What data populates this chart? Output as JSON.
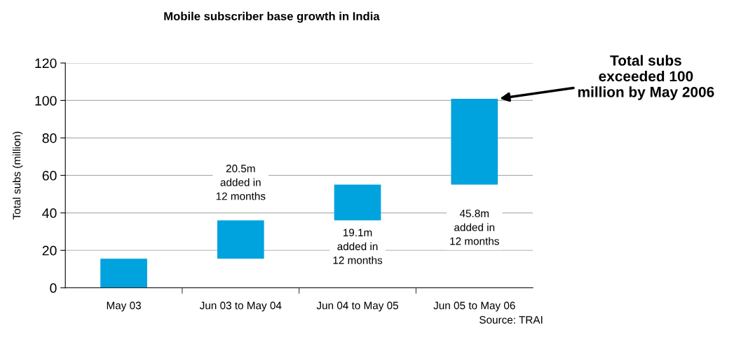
{
  "chart_data": {
    "type": "bar",
    "title": "Mobile subscriber base growth in India",
    "ylabel": "Total subs (million)",
    "categories": [
      "May 03",
      "Jun 03 to May 04",
      "Jun 04 to May 05",
      "Jun 05 to May 06"
    ],
    "values": [
      15.5,
      20.5,
      19.1,
      45.8
    ],
    "base": [
      0,
      15.5,
      36,
      55.1
    ],
    "color": "#00a3dd",
    "ylim": [
      0,
      120
    ],
    "yticks": [
      0,
      20,
      40,
      60,
      80,
      100,
      120
    ],
    "grid": "y",
    "annotations": [
      "20.5m\nadded in\n12 months",
      "19.1m\nadded in\n12 months",
      "45.8m\nadded in\n12 months",
      "Total subs\nexceeded 100\nmillion by May 2006",
      "Source: TRAI"
    ]
  }
}
